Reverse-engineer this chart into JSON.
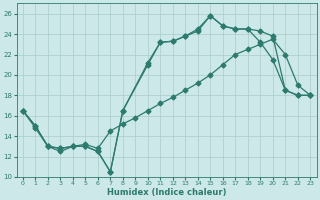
{
  "xlabel": "Humidex (Indice chaleur)",
  "bg_color": "#cce8e8",
  "grid_color": "#aacccc",
  "line_color": "#2d7a6e",
  "xlim": [
    -0.5,
    23.5
  ],
  "ylim": [
    10,
    27
  ],
  "yticks": [
    10,
    12,
    14,
    16,
    18,
    20,
    22,
    24,
    26
  ],
  "xticks": [
    0,
    1,
    2,
    3,
    4,
    5,
    6,
    7,
    8,
    9,
    10,
    11,
    12,
    13,
    14,
    15,
    16,
    17,
    18,
    19,
    20,
    21,
    22,
    23
  ],
  "line_straight_x": [
    0,
    1,
    2,
    3,
    4,
    5,
    6,
    7,
    8,
    9,
    10,
    11,
    12,
    13,
    14,
    15,
    16,
    17,
    18,
    19,
    20,
    21,
    22,
    23
  ],
  "line_straight_y": [
    16.5,
    14.8,
    13.0,
    12.5,
    13.0,
    13.2,
    12.8,
    14.5,
    15.2,
    15.8,
    16.5,
    17.2,
    17.8,
    18.5,
    19.2,
    20.0,
    21.0,
    22.0,
    22.5,
    23.0,
    23.5,
    22.0,
    19.0,
    18.0
  ],
  "line_upper1_x": [
    0,
    1,
    2,
    3,
    4,
    5,
    6,
    7,
    8,
    10,
    11,
    12,
    13,
    14,
    15,
    16,
    17,
    18,
    19,
    20,
    21,
    22,
    23
  ],
  "line_upper1_y": [
    16.5,
    15.0,
    13.0,
    12.8,
    13.0,
    13.0,
    12.5,
    10.5,
    16.5,
    21.0,
    23.2,
    23.3,
    23.8,
    24.5,
    25.8,
    24.8,
    24.5,
    24.5,
    23.2,
    21.5,
    18.5,
    18.0,
    18.0
  ],
  "line_upper2_x": [
    0,
    1,
    2,
    3,
    4,
    5,
    6,
    7,
    8,
    10,
    11,
    12,
    13,
    14,
    15,
    16,
    17,
    18,
    19,
    20,
    21,
    22,
    23
  ],
  "line_upper2_y": [
    16.5,
    15.0,
    13.0,
    12.8,
    13.0,
    13.0,
    12.5,
    10.5,
    16.5,
    21.2,
    23.2,
    23.3,
    23.8,
    24.3,
    25.8,
    24.8,
    24.5,
    24.5,
    24.3,
    23.8,
    18.5,
    18.0,
    18.0
  ],
  "marker": "D",
  "marker_size": 2.5,
  "line_width": 0.9
}
